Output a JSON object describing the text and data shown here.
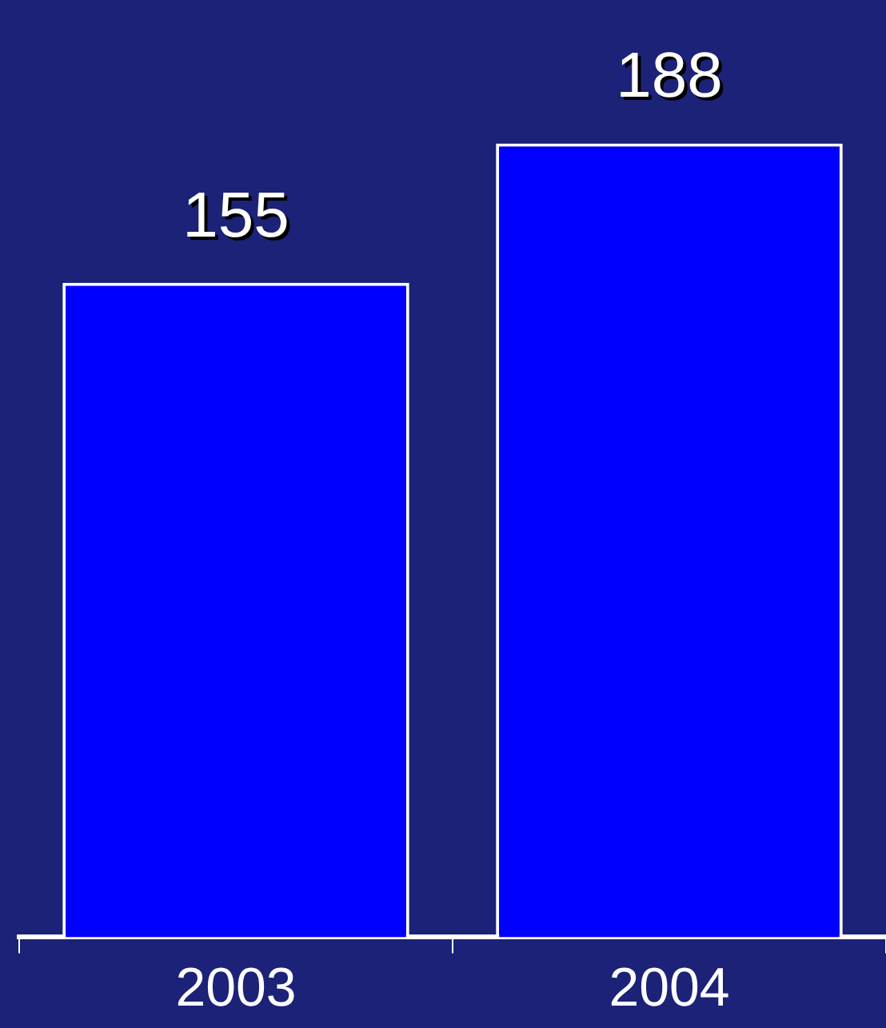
{
  "chart_data": {
    "type": "bar",
    "categories": [
      "2003",
      "2004"
    ],
    "values": [
      155,
      188
    ],
    "color": "#0000ff",
    "data_labels": true,
    "grid": false,
    "legend": false
  }
}
